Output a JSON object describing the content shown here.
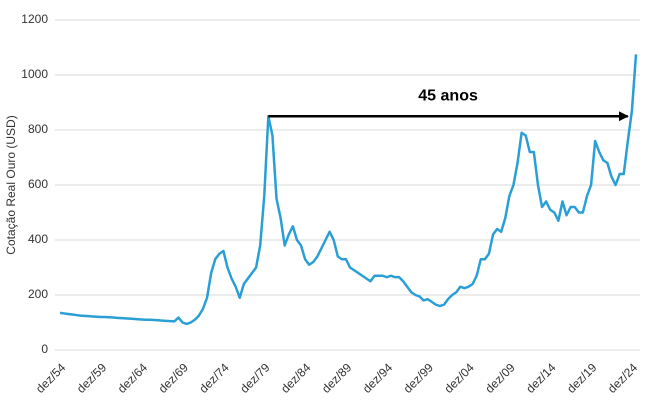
{
  "chart_data": {
    "type": "line",
    "y_label": "Cotação Real Ouro (USD)",
    "annotation": "45 anos",
    "color": "#2a9fd6",
    "grid": true,
    "ylim": [
      0,
      1200
    ],
    "yticks": [
      0,
      200,
      400,
      600,
      800,
      1000,
      1200
    ],
    "categories": [
      "dez/54",
      null,
      null,
      null,
      null,
      null,
      null,
      null,
      null,
      null,
      "dez/59",
      null,
      null,
      null,
      null,
      null,
      null,
      null,
      null,
      null,
      "dez/64",
      null,
      null,
      null,
      null,
      null,
      null,
      null,
      null,
      null,
      "dez/69",
      null,
      null,
      null,
      null,
      null,
      null,
      null,
      null,
      null,
      "dez/74",
      null,
      null,
      null,
      null,
      null,
      null,
      null,
      null,
      null,
      "dez/79",
      null,
      null,
      null,
      null,
      null,
      null,
      null,
      null,
      null,
      "dez/84",
      null,
      null,
      null,
      null,
      null,
      null,
      null,
      null,
      null,
      "dez/89",
      null,
      null,
      null,
      null,
      null,
      null,
      null,
      null,
      null,
      "dez/94",
      null,
      null,
      null,
      null,
      null,
      null,
      null,
      null,
      null,
      "dez/99",
      null,
      null,
      null,
      null,
      null,
      null,
      null,
      null,
      null,
      "dez/04",
      null,
      null,
      null,
      null,
      null,
      null,
      null,
      null,
      null,
      "dez/09",
      null,
      null,
      null,
      null,
      null,
      null,
      null,
      null,
      null,
      "dez/14",
      null,
      null,
      null,
      null,
      null,
      null,
      null,
      null,
      null,
      "dez/19",
      null,
      null,
      null,
      null,
      null,
      null,
      null,
      null,
      null,
      "dez/24",
      null
    ],
    "values": [
      135,
      133,
      131,
      129,
      127,
      125,
      124,
      123,
      122,
      121,
      120,
      120,
      119,
      118,
      117,
      116,
      115,
      114,
      113,
      112,
      111,
      110,
      110,
      109,
      108,
      107,
      106,
      105,
      104,
      118,
      100,
      95,
      100,
      110,
      125,
      150,
      190,
      280,
      330,
      350,
      360,
      300,
      260,
      230,
      190,
      240,
      260,
      280,
      300,
      380,
      560,
      850,
      780,
      550,
      480,
      380,
      420,
      450,
      400,
      380,
      330,
      310,
      320,
      340,
      370,
      400,
      430,
      400,
      340,
      330,
      330,
      300,
      290,
      280,
      270,
      260,
      250,
      270,
      270,
      270,
      265,
      270,
      265,
      265,
      250,
      230,
      210,
      200,
      195,
      180,
      185,
      175,
      165,
      160,
      165,
      185,
      200,
      210,
      230,
      225,
      230,
      240,
      270,
      330,
      330,
      350,
      420,
      440,
      430,
      480,
      560,
      600,
      680,
      790,
      780,
      720,
      720,
      600,
      520,
      540,
      510,
      500,
      470,
      540,
      490,
      520,
      520,
      500,
      500,
      560,
      600,
      760,
      720,
      690,
      680,
      630,
      600,
      640,
      640,
      760,
      870,
      1075
    ]
  }
}
